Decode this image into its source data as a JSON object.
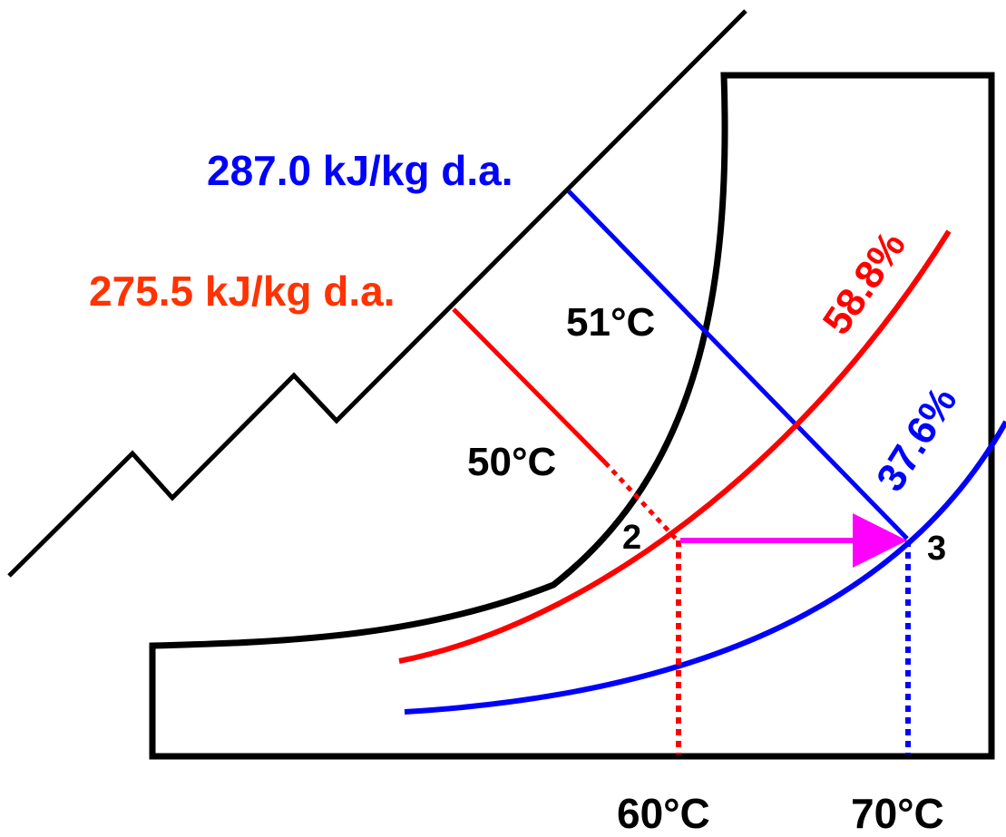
{
  "enthalpy_labels": {
    "upper": "287.0 kJ/kg d.a.",
    "lower": "275.5 kJ/kg d.a."
  },
  "wet_bulb_labels": {
    "upper": "51°C",
    "lower": "50°C"
  },
  "relative_humidity_labels": {
    "state2": "58.8%",
    "state3": "37.6%"
  },
  "state_points": {
    "state2": "2",
    "state3": "3"
  },
  "dry_bulb_labels": {
    "state2": "60°C",
    "state3": "70°C"
  },
  "colors": {
    "state2": "#ff0000",
    "state3": "#0000ff",
    "upper_enthalpy_text": "#0000ff",
    "lower_enthalpy_text": "#ff3300",
    "process_arrow": "#ff00ff",
    "chart_outline": "#000000"
  }
}
